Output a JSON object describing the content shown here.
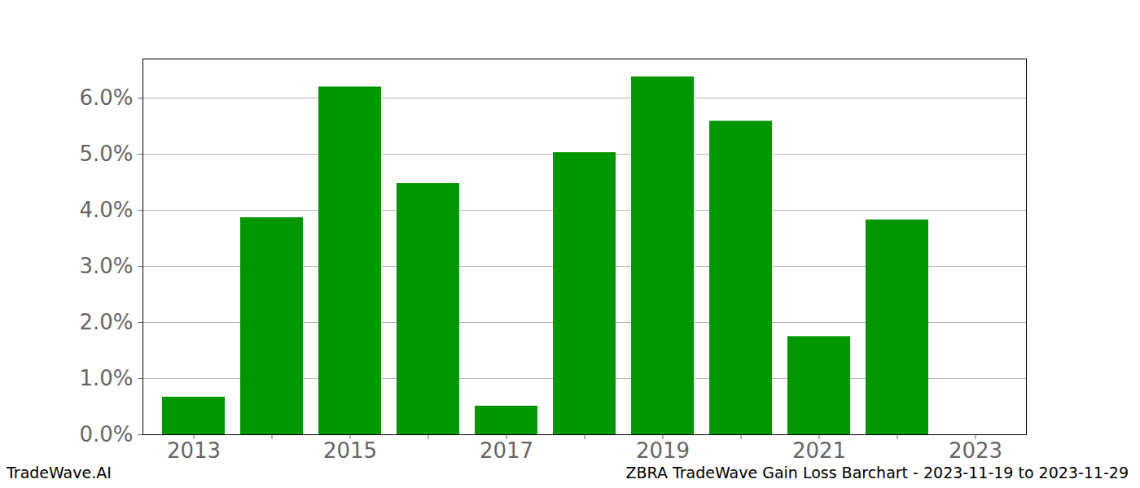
{
  "chart_data": {
    "type": "bar",
    "categories": [
      "2013",
      null,
      "2015",
      null,
      "2017",
      null,
      "2019",
      null,
      "2021",
      null,
      "2023"
    ],
    "values": [
      0.67,
      3.87,
      6.2,
      4.48,
      0.51,
      5.03,
      6.38,
      5.59,
      1.75,
      3.83,
      null
    ],
    "color": "#009600",
    "ylim": [
      0,
      6.7
    ],
    "yticks": [
      {
        "value": 0,
        "label": "0.0%"
      },
      {
        "value": 1,
        "label": "1.0%"
      },
      {
        "value": 2,
        "label": "2.0%"
      },
      {
        "value": 3,
        "label": "3.0%"
      },
      {
        "value": 4,
        "label": "4.0%"
      },
      {
        "value": 5,
        "label": "5.0%"
      },
      {
        "value": 6,
        "label": "6.0%"
      }
    ],
    "grid": true,
    "annotations": [
      "TradeWave.AI",
      "ZBRA TradeWave Gain Loss Barchart - 2023-11-19 to 2023-11-29"
    ]
  }
}
